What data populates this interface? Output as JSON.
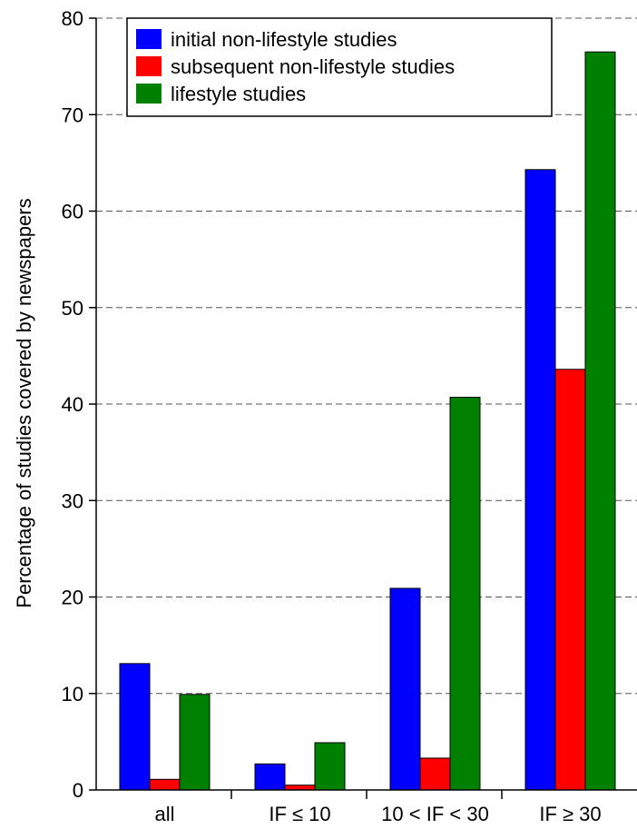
{
  "chart_data": {
    "type": "bar",
    "title": "",
    "xlabel": "",
    "ylabel": "Percentage of studies covered by newspapers",
    "ylim": [
      0,
      80
    ],
    "yticks": [
      0,
      10,
      20,
      30,
      40,
      50,
      60,
      70,
      80
    ],
    "grid": true,
    "legend_position": "top-left",
    "categories": [
      "all",
      "IF ≤ 10",
      "10 < IF < 30",
      "IF ≥ 30"
    ],
    "series": [
      {
        "name": "initial non-lifestyle studies",
        "color": "#0000ff",
        "values": [
          13.1,
          2.7,
          20.9,
          64.3
        ]
      },
      {
        "name": "subsequent non-lifestyle studies",
        "color": "#ff0000",
        "values": [
          1.1,
          0.5,
          3.3,
          43.6
        ]
      },
      {
        "name": "lifestyle studies",
        "color": "#008000",
        "values": [
          9.9,
          4.9,
          40.7,
          76.5
        ]
      }
    ]
  }
}
